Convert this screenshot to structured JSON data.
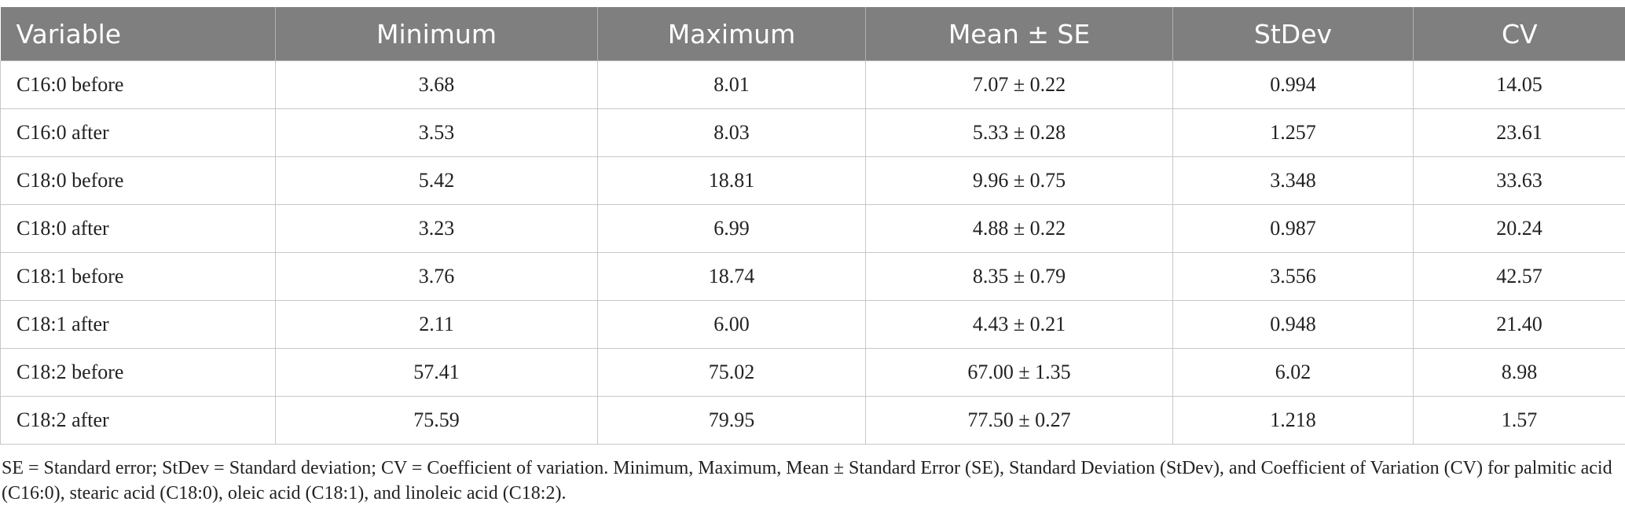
{
  "table": {
    "header": [
      "Variable",
      "Minimum",
      "Maximum",
      "Mean ± SE",
      "StDev",
      "CV"
    ],
    "rows": [
      [
        "C16:0 before",
        "3.68",
        "8.01",
        "7.07 ± 0.22",
        "0.994",
        "14.05"
      ],
      [
        "C16:0 after",
        "3.53",
        "8.03",
        "5.33 ± 0.28",
        "1.257",
        "23.61"
      ],
      [
        "C18:0 before",
        "5.42",
        "18.81",
        "9.96 ± 0.75",
        "3.348",
        "33.63"
      ],
      [
        "C18:0 after",
        "3.23",
        "6.99",
        "4.88 ± 0.22",
        "0.987",
        "20.24"
      ],
      [
        "C18:1 before",
        "3.76",
        "18.74",
        "8.35 ± 0.79",
        "3.556",
        "42.57"
      ],
      [
        "C18:1 after",
        "2.11",
        "6.00",
        "4.43 ± 0.21",
        "0.948",
        "21.40"
      ],
      [
        "C18:2 before",
        "57.41",
        "75.02",
        "67.00 ± 1.35",
        "6.02",
        "8.98"
      ],
      [
        "C18:2 after",
        "75.59",
        "79.95",
        "77.50 ± 0.27",
        "1.218",
        "1.57"
      ]
    ]
  },
  "footnote": "SE = Standard error; StDev = Standard deviation; CV = Coefficient of variation. Minimum, Maximum, Mean ± Standard Error (SE), Standard Deviation (StDev), and Coefficient of Variation (CV) for palmitic acid (C16:0), stearic acid (C18:0), oleic acid (C18:1), and linoleic acid (C18:2)."
}
